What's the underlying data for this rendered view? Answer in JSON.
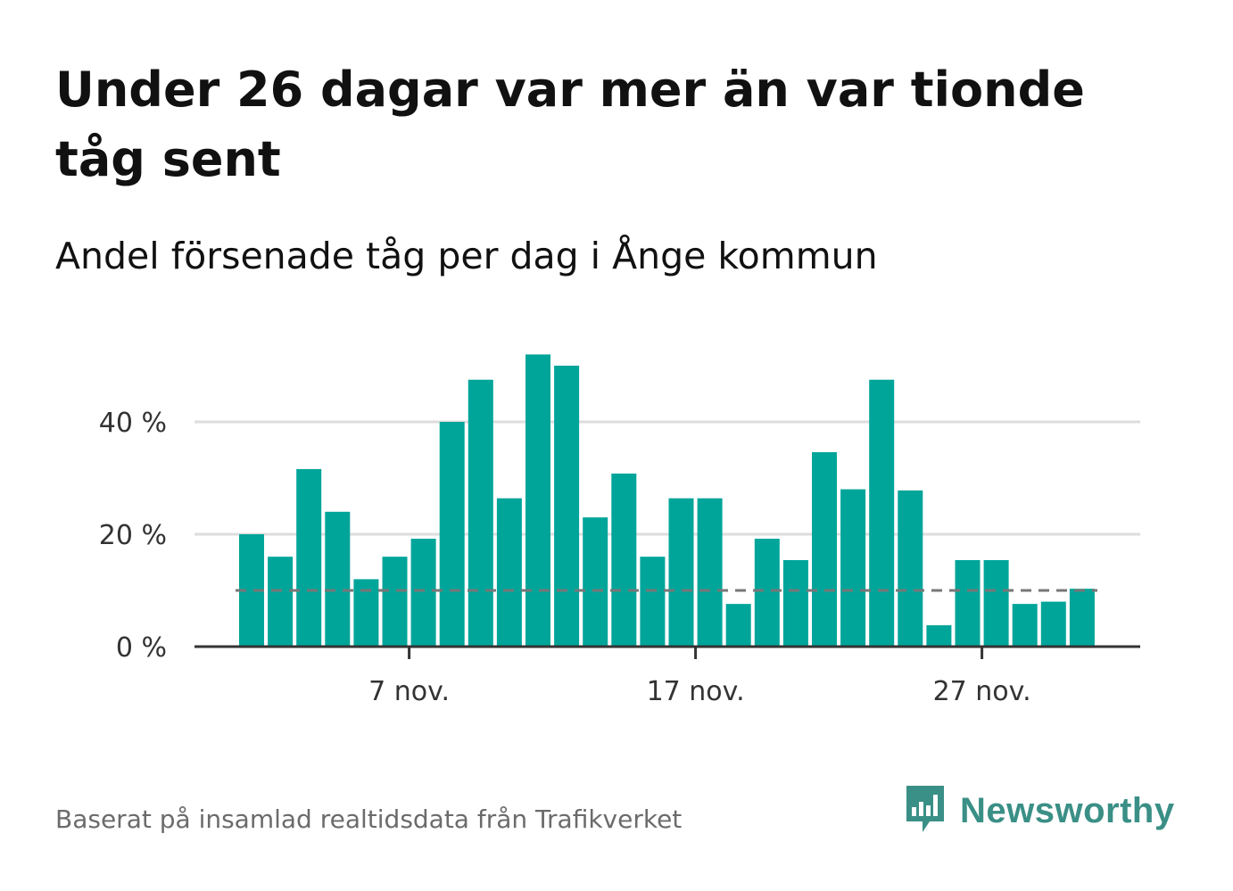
{
  "title": "Under 26 dagar var mer än var tionde tåg sent",
  "subtitle": "Andel försenade tåg per dag i Ånge kommun",
  "source": "Baserat på insamlad realtidsdata från Trafikverket",
  "brand": {
    "name": "Newsworthy",
    "icon": "newsworthy-logo-icon",
    "color": "#3a8f86"
  },
  "chart_data": {
    "type": "bar",
    "title": "Under 26 dagar var mer än var tionde tåg sent",
    "subtitle": "Andel försenade tåg per dag i Ånge kommun",
    "x": [
      "1 nov.",
      "2 nov.",
      "3 nov.",
      "4 nov.",
      "5 nov.",
      "6 nov.",
      "7 nov.",
      "8 nov.",
      "9 nov.",
      "10 nov.",
      "11 nov.",
      "12 nov.",
      "13 nov.",
      "14 nov.",
      "15 nov.",
      "16 nov.",
      "17 nov.",
      "18 nov.",
      "19 nov.",
      "20 nov.",
      "21 nov.",
      "22 nov.",
      "23 nov.",
      "24 nov.",
      "25 nov.",
      "26 nov.",
      "27 nov.",
      "28 nov.",
      "29 nov.",
      "30 nov."
    ],
    "values": [
      20,
      16,
      31.6,
      24,
      12,
      16,
      19.2,
      40,
      47.5,
      26.4,
      52,
      50,
      23,
      30.8,
      16,
      26.4,
      26.4,
      7.6,
      19.2,
      15.4,
      34.6,
      28,
      47.5,
      27.8,
      3.8,
      15.4,
      15.4,
      7.6,
      8,
      10.3
    ],
    "reference_line": 10,
    "ylim": [
      0,
      52
    ],
    "y_ticks": [
      0,
      20,
      40
    ],
    "y_tick_labels": [
      "0 %",
      "20 %",
      "40 %"
    ],
    "x_tick_labels": [
      "7 nov.",
      "17 nov.",
      "27 nov."
    ],
    "x_tick_positions": [
      "7 nov.",
      "17 nov.",
      "27 nov."
    ],
    "xlabel": "",
    "ylabel": "",
    "grid": true,
    "colors": {
      "bar": "#00a59a",
      "reference": "#777777",
      "grid": "#dddddd",
      "axis": "#333333"
    }
  }
}
